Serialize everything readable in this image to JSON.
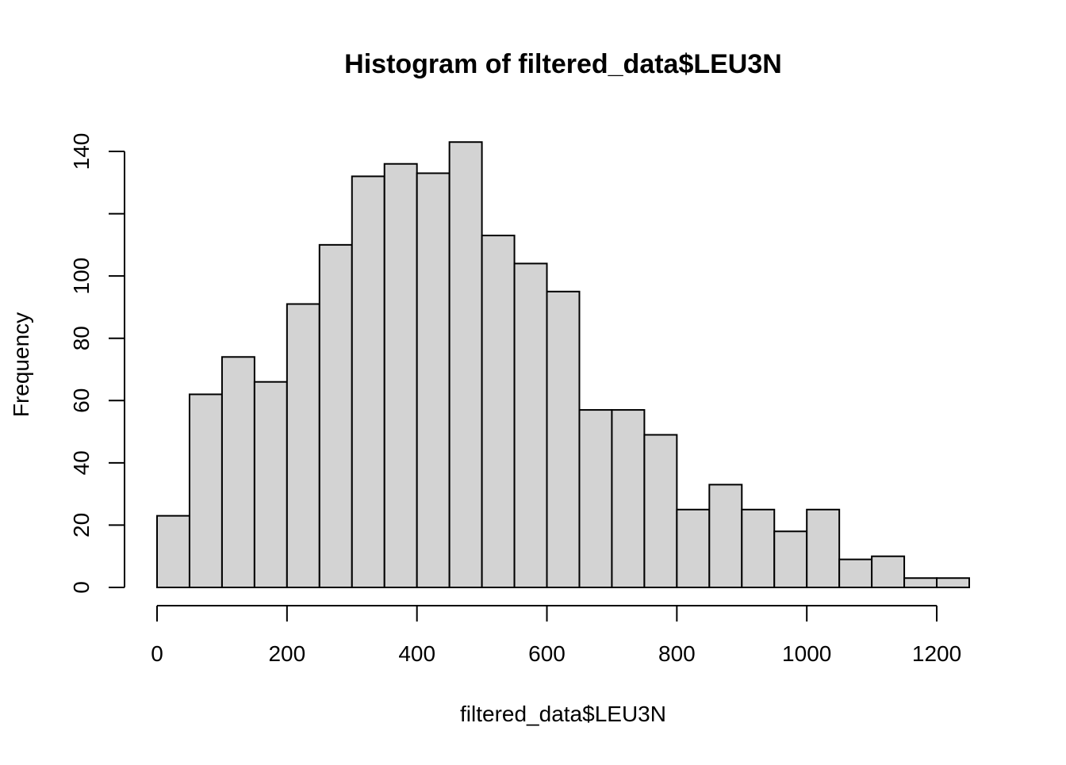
{
  "chart_data": {
    "type": "bar",
    "title": "Histogram of filtered_data$LEU3N",
    "xlabel": "filtered_data$LEU3N",
    "ylabel": "Frequency",
    "bin_width": 50,
    "bins": [
      {
        "x0": 0,
        "x1": 50,
        "count": 23
      },
      {
        "x0": 50,
        "x1": 100,
        "count": 62
      },
      {
        "x0": 100,
        "x1": 150,
        "count": 74
      },
      {
        "x0": 150,
        "x1": 200,
        "count": 66
      },
      {
        "x0": 200,
        "x1": 250,
        "count": 91
      },
      {
        "x0": 250,
        "x1": 300,
        "count": 110
      },
      {
        "x0": 300,
        "x1": 350,
        "count": 132
      },
      {
        "x0": 350,
        "x1": 400,
        "count": 136
      },
      {
        "x0": 400,
        "x1": 450,
        "count": 133
      },
      {
        "x0": 450,
        "x1": 500,
        "count": 143
      },
      {
        "x0": 500,
        "x1": 550,
        "count": 113
      },
      {
        "x0": 550,
        "x1": 600,
        "count": 104
      },
      {
        "x0": 600,
        "x1": 650,
        "count": 95
      },
      {
        "x0": 650,
        "x1": 700,
        "count": 57
      },
      {
        "x0": 700,
        "x1": 750,
        "count": 57
      },
      {
        "x0": 750,
        "x1": 800,
        "count": 49
      },
      {
        "x0": 800,
        "x1": 850,
        "count": 25
      },
      {
        "x0": 850,
        "x1": 900,
        "count": 33
      },
      {
        "x0": 900,
        "x1": 950,
        "count": 25
      },
      {
        "x0": 950,
        "x1": 1000,
        "count": 18
      },
      {
        "x0": 1000,
        "x1": 1050,
        "count": 25
      },
      {
        "x0": 1050,
        "x1": 1100,
        "count": 9
      },
      {
        "x0": 1100,
        "x1": 1150,
        "count": 10
      },
      {
        "x0": 1150,
        "x1": 1200,
        "count": 3
      },
      {
        "x0": 1200,
        "x1": 1250,
        "count": 3
      }
    ],
    "xlim": [
      0,
      1250
    ],
    "ylim": [
      0,
      140
    ],
    "x_ticks": [
      0,
      200,
      400,
      600,
      800,
      1000,
      1200
    ],
    "x_tick_labels": [
      "0",
      "200",
      "400",
      "600",
      "800",
      "1000",
      "1200"
    ],
    "y_ticks": [
      0,
      20,
      40,
      60,
      80,
      100,
      120,
      140
    ],
    "y_tick_labels": [
      "0",
      "20",
      "40",
      "60",
      "80",
      "100",
      "",
      "140"
    ],
    "bar_fill": "#d3d3d3",
    "bar_stroke": "#000000",
    "grid": false,
    "legend": "none"
  }
}
